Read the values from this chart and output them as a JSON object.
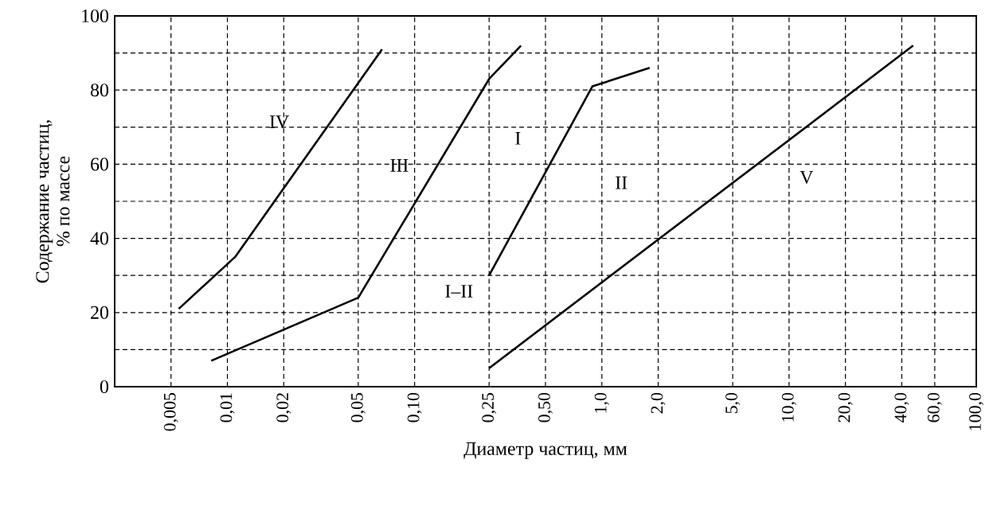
{
  "chart_data": {
    "type": "line",
    "xlabel": "Диаметр частиц, мм",
    "ylabel": "Содержание частиц,\n% по массе",
    "log": "x",
    "grid": true,
    "marker": "none",
    "line_style": "solid",
    "xlim": [
      0.0025,
      100
    ],
    "ylim": [
      0,
      100
    ],
    "xticks": [
      {
        "value": 0.005,
        "label": "0,005"
      },
      {
        "value": 0.01,
        "label": "0,01"
      },
      {
        "value": 0.02,
        "label": "0,02"
      },
      {
        "value": 0.05,
        "label": "0,05"
      },
      {
        "value": 0.1,
        "label": "0,10"
      },
      {
        "value": 0.25,
        "label": "0,25"
      },
      {
        "value": 0.5,
        "label": "0,50"
      },
      {
        "value": 1,
        "label": "1,0"
      },
      {
        "value": 2,
        "label": "2,0"
      },
      {
        "value": 5,
        "label": "5,0"
      },
      {
        "value": 10,
        "label": "10,0"
      },
      {
        "value": 20,
        "label": "20,0"
      },
      {
        "value": 40,
        "label": "40,0"
      },
      {
        "value": 60,
        "label": "60,0"
      },
      {
        "value": 100,
        "label": "100,0"
      }
    ],
    "yticks": [
      0,
      {
        "value": 10,
        "label": null
      },
      20,
      {
        "value": 30,
        "label": null
      },
      40,
      {
        "value": 50,
        "label": null
      },
      60,
      {
        "value": 70,
        "label": null
      },
      80,
      {
        "value": 90,
        "label": null
      },
      100
    ],
    "series": [
      {
        "name": "IV",
        "color": "#000000",
        "x": [
          0.0055,
          0.011,
          0.067
        ],
        "values": [
          21,
          35,
          91
        ]
      },
      {
        "name": "III",
        "color": "#000000",
        "x": [
          0.0082,
          0.05,
          0.25,
          0.37
        ],
        "values": [
          7,
          24,
          83,
          92
        ]
      },
      {
        "name": "I–II",
        "color": "#000000",
        "x": [
          0.25,
          0.89,
          1.8
        ],
        "values": [
          30,
          81,
          86
        ]
      },
      {
        "name": "V",
        "color": "#000000",
        "x": [
          0.25,
          46
        ],
        "values": [
          5,
          92
        ]
      }
    ],
    "annotations": [
      "I",
      "II"
    ]
  }
}
